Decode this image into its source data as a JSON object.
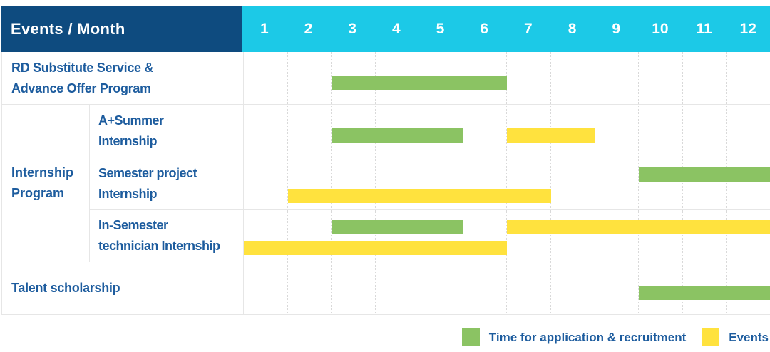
{
  "header": {
    "label": "Events / Month",
    "months": [
      "1",
      "2",
      "3",
      "4",
      "5",
      "6",
      "7",
      "8",
      "9",
      "10",
      "11",
      "12"
    ]
  },
  "group": {
    "id": "internship-program",
    "label_lines": [
      "Internship",
      "Program"
    ]
  },
  "rows": [
    {
      "id": "rd-substitute-service-advance-offer-program",
      "label_lines": [
        "RD Substitute Service &",
        "Advance Offer Program"
      ],
      "in_group": false,
      "bars": [
        {
          "color": "green",
          "start": 2,
          "end": 6,
          "line": 0
        }
      ]
    },
    {
      "id": "a-plus-summer-internship",
      "label_lines": [
        "A+Summer",
        "Internship"
      ],
      "in_group": true,
      "bars": [
        {
          "color": "green",
          "start": 2,
          "end": 5,
          "line": 0
        },
        {
          "color": "yellow",
          "start": 6,
          "end": 8,
          "line": 0
        }
      ]
    },
    {
      "id": "semester-project-internship",
      "label_lines": [
        "Semester project",
        "Internship"
      ],
      "in_group": true,
      "bars": [
        {
          "color": "green",
          "start": 9,
          "end": 12,
          "line": 0
        },
        {
          "color": "yellow",
          "start": 1,
          "end": 7,
          "line": 1
        }
      ]
    },
    {
      "id": "in-semester-technician-internship",
      "label_lines": [
        "In-Semester",
        "technician Internship"
      ],
      "in_group": true,
      "bars": [
        {
          "color": "green",
          "start": 2,
          "end": 5,
          "line": 0
        },
        {
          "color": "yellow",
          "start": 6,
          "end": 12,
          "line": 0
        },
        {
          "color": "yellow",
          "start": 0,
          "end": 6,
          "line": 1
        }
      ]
    },
    {
      "id": "talent-scholarship",
      "label_lines": [
        "Talent scholarship"
      ],
      "in_group": false,
      "bars": [
        {
          "color": "green",
          "start": 9,
          "end": 12,
          "line": 0
        }
      ]
    }
  ],
  "legend": [
    {
      "color": "green",
      "label": "Time for application & recruitment"
    },
    {
      "color": "yellow",
      "label": "Events"
    }
  ],
  "colors": {
    "navy": "#0E4B7F",
    "cyan": "#1CC9E7",
    "green": "#8BC363",
    "yellow": "#FFE23E",
    "label_text": "#1D5C9E",
    "grid_line": "#E6E6E6",
    "grid_dotted": "#D9D9D9",
    "background": "#FFFFFF"
  },
  "chart_data": {
    "type": "bar",
    "subtype": "gantt",
    "title": "Events / Month",
    "x_axis": {
      "label": "Month",
      "ticks": [
        1,
        2,
        3,
        4,
        5,
        6,
        7,
        8,
        9,
        10,
        11,
        12
      ],
      "range": [
        1,
        12
      ]
    },
    "grid": true,
    "legend_position": "bottom-right",
    "categories": [
      "RD Substitute Service & Advance Offer Program",
      "A+Summer Internship",
      "Semester project Internship",
      "In-Semester technician Internship",
      "Talent scholarship"
    ],
    "category_group": {
      "label": "Internship Program",
      "members": [
        "A+Summer Internship",
        "Semester project Internship",
        "In-Semester technician Internship"
      ]
    },
    "series": [
      {
        "name": "Time for application & recruitment",
        "color": "#8BC363",
        "spans": [
          {
            "category": "RD Substitute Service & Advance Offer Program",
            "months": [
              3,
              6
            ]
          },
          {
            "category": "A+Summer Internship",
            "months": [
              3,
              5
            ]
          },
          {
            "category": "Semester project Internship",
            "months": [
              10,
              12
            ]
          },
          {
            "category": "In-Semester technician Internship",
            "months": [
              3,
              5
            ]
          },
          {
            "category": "Talent scholarship",
            "months": [
              10,
              12
            ]
          }
        ]
      },
      {
        "name": "Events",
        "color": "#FFE23E",
        "spans": [
          {
            "category": "A+Summer Internship",
            "months": [
              7,
              8
            ]
          },
          {
            "category": "Semester project Internship",
            "months": [
              2,
              7
            ]
          },
          {
            "category": "In-Semester technician Internship",
            "months": [
              1,
              6
            ]
          },
          {
            "category": "In-Semester technician Internship",
            "months": [
              7,
              12
            ]
          }
        ]
      }
    ]
  }
}
